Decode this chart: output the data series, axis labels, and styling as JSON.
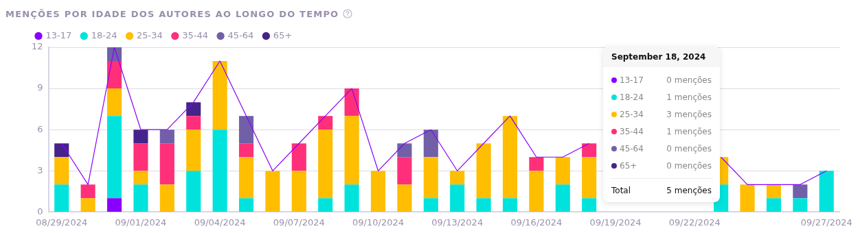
{
  "chart_data": {
    "type": "bar",
    "title": "MENÇÕES POR IDADE DOS AUTORES AO LONGO DO TEMPO",
    "stacked": true,
    "legend": "top left",
    "grid": true,
    "ylim": [
      0,
      12
    ],
    "yticks": [
      0,
      3,
      6,
      9,
      12
    ],
    "categories": [
      "08/29/2024",
      null,
      null,
      "09/01/2024",
      null,
      null,
      "09/04/2024",
      null,
      null,
      "09/07/2024",
      null,
      null,
      "09/10/2024",
      null,
      null,
      "09/13/2024",
      null,
      null,
      "09/16/2024",
      null,
      null,
      "09/19/2024",
      null,
      null,
      "09/22/2024",
      null,
      null,
      null,
      null,
      "09/27/2024"
    ],
    "series": [
      {
        "name": "13-17",
        "color": "#8a00ff",
        "values": [
          0,
          0,
          1,
          0,
          0,
          0,
          0,
          0,
          0,
          0,
          0,
          0,
          0,
          0,
          0,
          0,
          0,
          0,
          0,
          0,
          0,
          null,
          null,
          null,
          null,
          0,
          0,
          0,
          0,
          0
        ]
      },
      {
        "name": "18-24",
        "color": "#00e3dd",
        "values": [
          2,
          0,
          6,
          2,
          0,
          3,
          6,
          1,
          0,
          0,
          1,
          2,
          0,
          0,
          1,
          2,
          1,
          1,
          0,
          2,
          1,
          null,
          null,
          null,
          null,
          2,
          0,
          1,
          1,
          3
        ]
      },
      {
        "name": "25-34",
        "color": "#ffbe00",
        "values": [
          2,
          1,
          2,
          1,
          2,
          3,
          5,
          3,
          3,
          3,
          5,
          5,
          3,
          2,
          3,
          1,
          4,
          6,
          3,
          2,
          3,
          null,
          null,
          null,
          null,
          2,
          2,
          1,
          0,
          0
        ]
      },
      {
        "name": "35-44",
        "color": "#ff2f7a",
        "values": [
          0,
          1,
          2,
          2,
          3,
          1,
          0,
          1,
          0,
          2,
          1,
          2,
          0,
          2,
          0,
          0,
          0,
          0,
          1,
          0,
          1,
          null,
          null,
          null,
          null,
          0,
          0,
          0,
          0,
          0
        ]
      },
      {
        "name": "45-64",
        "color": "#7160a8",
        "values": [
          0,
          0,
          1,
          0,
          1,
          0,
          0,
          2,
          0,
          0,
          0,
          0,
          0,
          1,
          2,
          0,
          0,
          0,
          0,
          0,
          0,
          null,
          null,
          null,
          null,
          0,
          0,
          0,
          1,
          0
        ]
      },
      {
        "name": "65+",
        "color": "#46238a",
        "values": [
          1,
          0,
          0,
          1,
          0,
          1,
          0,
          0,
          0,
          0,
          0,
          0,
          0,
          0,
          0,
          0,
          0,
          0,
          0,
          0,
          0,
          null,
          null,
          null,
          null,
          0,
          0,
          0,
          0,
          0
        ]
      },
      {
        "type": "line",
        "color": "#8a00ff",
        "values": [
          5,
          2,
          12,
          6,
          6,
          8,
          11,
          7,
          3,
          5,
          7,
          9,
          3,
          5,
          6,
          3,
          5,
          7,
          4,
          4,
          5,
          null,
          null,
          null,
          null,
          4,
          2,
          2,
          2,
          3
        ]
      }
    ],
    "annotations": [
      "September 18, 2024",
      "0 menções",
      "1 menções",
      "3 menções",
      "1 menções",
      "0 menções",
      "0 menções",
      "Total",
      "5 menções"
    ]
  }
}
